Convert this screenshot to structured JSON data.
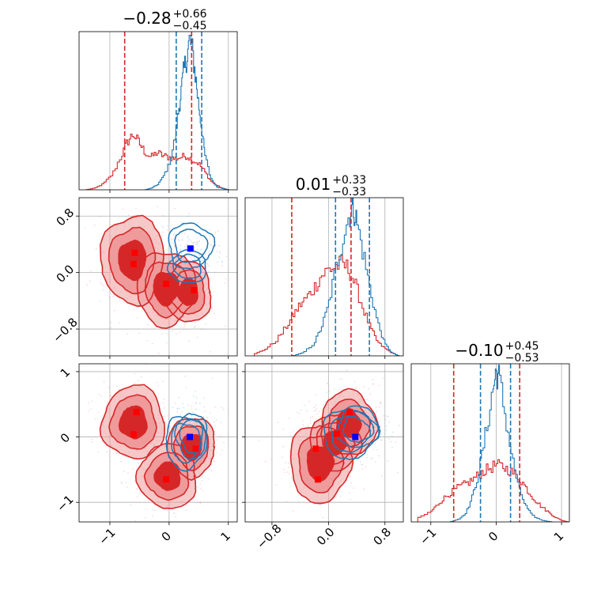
{
  "chart_data": {
    "type": "corner",
    "titles": [
      {
        "main": "−0.28",
        "sup": "+0.66",
        "sub": "−0.45"
      },
      {
        "main": "0.01",
        "sup": "+0.33",
        "sub": "−0.33"
      },
      {
        "main": "−0.10",
        "sup": "+0.45",
        "sub": "−0.53"
      }
    ],
    "axes": [
      {
        "range": [
          -1.52,
          1.15
        ],
        "ticks": [
          -1,
          0,
          1
        ],
        "tick_labels": [
          "−1",
          "0",
          "1"
        ]
      },
      {
        "range": [
          -1.18,
          1.06
        ],
        "ticks": [
          -0.8,
          0.0,
          0.8
        ],
        "tick_labels": [
          "−0.8",
          "0.0",
          "0.8"
        ]
      },
      {
        "range": [
          -1.3,
          1.12
        ],
        "ticks": [
          -1,
          0,
          1
        ],
        "tick_labels": [
          "−1",
          "0",
          "1"
        ]
      }
    ],
    "grid": true,
    "colors": {
      "red": "#d62728",
      "blue": "#1f77b4",
      "red_fill_light": "#ef9a9b",
      "red_fill_dark": "#d62728",
      "marker_red": "#ff0000",
      "marker_blue": "#0000ff"
    },
    "diagonal": [
      {
        "quantiles_red": [
          -0.75,
          0.38
        ],
        "quantiles_blue": [
          0.12,
          0.55
        ],
        "red_hist": {
          "x": [
            -1.4,
            -1.25,
            -1.1,
            -0.95,
            -0.8,
            -0.7,
            -0.6,
            -0.5,
            -0.4,
            -0.3,
            -0.2,
            -0.1,
            0.0,
            0.1,
            0.2,
            0.3,
            0.4,
            0.5,
            0.6,
            0.7,
            0.8,
            0.9,
            1.0
          ],
          "y": [
            0.0,
            0.01,
            0.04,
            0.1,
            0.22,
            0.31,
            0.36,
            0.3,
            0.24,
            0.21,
            0.24,
            0.22,
            0.21,
            0.2,
            0.21,
            0.22,
            0.19,
            0.17,
            0.12,
            0.06,
            0.03,
            0.01,
            0.0
          ]
        },
        "blue_hist": {
          "x": [
            -0.4,
            -0.3,
            -0.2,
            -0.1,
            0.0,
            0.1,
            0.15,
            0.2,
            0.25,
            0.3,
            0.35,
            0.4,
            0.45,
            0.5,
            0.55,
            0.6,
            0.7,
            0.8,
            0.9,
            1.0
          ],
          "y": [
            0.0,
            0.01,
            0.03,
            0.08,
            0.16,
            0.32,
            0.48,
            0.62,
            0.76,
            0.86,
            0.97,
            0.88,
            0.72,
            0.55,
            0.4,
            0.24,
            0.08,
            0.02,
            0.01,
            0.0
          ]
        }
      },
      {
        "quantiles_red": [
          -0.52,
          0.32
        ],
        "quantiles_blue": [
          0.1,
          0.58
        ],
        "red_hist": {
          "x": [
            -1.05,
            -0.9,
            -0.75,
            -0.6,
            -0.5,
            -0.4,
            -0.3,
            -0.2,
            -0.1,
            0.0,
            0.1,
            0.2,
            0.3,
            0.4,
            0.5,
            0.6,
            0.7,
            0.8,
            0.9,
            1.0
          ],
          "y": [
            0.01,
            0.04,
            0.09,
            0.18,
            0.26,
            0.33,
            0.38,
            0.44,
            0.52,
            0.56,
            0.58,
            0.6,
            0.56,
            0.44,
            0.3,
            0.18,
            0.09,
            0.05,
            0.02,
            0.0
          ]
        },
        "blue_hist": {
          "x": [
            -0.5,
            -0.35,
            -0.2,
            -0.1,
            0.0,
            0.1,
            0.2,
            0.3,
            0.35,
            0.4,
            0.5,
            0.6,
            0.7,
            0.8,
            0.9,
            1.0
          ],
          "y": [
            0.0,
            0.02,
            0.08,
            0.18,
            0.32,
            0.55,
            0.75,
            0.92,
            0.98,
            0.88,
            0.66,
            0.42,
            0.22,
            0.08,
            0.02,
            0.0
          ]
        }
      },
      {
        "quantiles_red": [
          -0.65,
          0.36
        ],
        "quantiles_blue": [
          -0.24,
          0.22
        ],
        "red_hist": {
          "x": [
            -1.2,
            -1.0,
            -0.9,
            -0.8,
            -0.7,
            -0.6,
            -0.5,
            -0.4,
            -0.3,
            -0.2,
            -0.1,
            0.0,
            0.1,
            0.2,
            0.3,
            0.4,
            0.5,
            0.6,
            0.7,
            0.8,
            0.9,
            1.0,
            1.1
          ],
          "y": [
            0.02,
            0.06,
            0.1,
            0.14,
            0.17,
            0.2,
            0.22,
            0.24,
            0.27,
            0.3,
            0.32,
            0.34,
            0.33,
            0.31,
            0.28,
            0.24,
            0.18,
            0.13,
            0.09,
            0.06,
            0.03,
            0.01,
            0.0
          ]
        },
        "blue_hist": {
          "x": [
            -0.7,
            -0.55,
            -0.45,
            -0.35,
            -0.25,
            -0.15,
            -0.05,
            0.0,
            0.05,
            0.15,
            0.25,
            0.35,
            0.45,
            0.55,
            0.7,
            0.85
          ],
          "y": [
            0.0,
            0.02,
            0.06,
            0.16,
            0.32,
            0.54,
            0.78,
            0.9,
            0.86,
            0.62,
            0.38,
            0.2,
            0.1,
            0.04,
            0.01,
            0.0
          ]
        }
      }
    ],
    "panels": [
      {
        "row": 1,
        "col": 0,
        "red_blobs": [
          {
            "x": -0.62,
            "y": 0.18,
            "sx": 0.32,
            "sy": 0.38
          },
          {
            "x": -0.05,
            "y": -0.22,
            "sx": 0.3,
            "sy": 0.32
          },
          {
            "x": 0.32,
            "y": -0.28,
            "sx": 0.24,
            "sy": 0.26
          }
        ],
        "blue_blobs": [
          {
            "x": 0.36,
            "y": 0.38,
            "sx": 0.26,
            "sy": 0.22
          },
          {
            "x": 0.32,
            "y": 0.08,
            "sx": 0.22,
            "sy": 0.16
          }
        ],
        "red_markers": [
          [
            -0.58,
            0.28
          ],
          [
            -0.6,
            0.12
          ],
          [
            -0.05,
            -0.16
          ],
          [
            0.42,
            -0.25
          ]
        ],
        "blue_markers": [
          [
            0.36,
            0.34
          ]
        ]
      },
      {
        "row": 2,
        "col": 0,
        "red_blobs": [
          {
            "x": -0.6,
            "y": 0.22,
            "sx": 0.32,
            "sy": 0.34
          },
          {
            "x": -0.02,
            "y": -0.6,
            "sx": 0.3,
            "sy": 0.3
          },
          {
            "x": 0.38,
            "y": -0.15,
            "sx": 0.24,
            "sy": 0.28
          }
        ],
        "blue_blobs": [
          {
            "x": 0.28,
            "y": -0.08,
            "sx": 0.24,
            "sy": 0.28
          },
          {
            "x": 0.38,
            "y": 0.02,
            "sx": 0.18,
            "sy": 0.24
          }
        ],
        "red_markers": [
          [
            -0.55,
            0.38
          ],
          [
            -0.6,
            0.04
          ],
          [
            -0.05,
            -0.65
          ],
          [
            0.45,
            -0.18
          ]
        ],
        "blue_markers": [
          [
            0.35,
            0.0
          ]
        ]
      },
      {
        "row": 2,
        "col": 1,
        "red_blobs": [
          {
            "x": -0.12,
            "y": -0.4,
            "sx": 0.26,
            "sy": 0.36
          },
          {
            "x": 0.28,
            "y": 0.2,
            "sx": 0.24,
            "sy": 0.3
          },
          {
            "x": 0.08,
            "y": -0.1,
            "sx": 0.22,
            "sy": 0.26
          }
        ],
        "blue_blobs": [
          {
            "x": 0.3,
            "y": 0.05,
            "sx": 0.26,
            "sy": 0.26
          },
          {
            "x": 0.42,
            "y": 0.15,
            "sx": 0.2,
            "sy": 0.22
          }
        ],
        "red_markers": [
          [
            -0.18,
            -0.18
          ],
          [
            -0.15,
            -0.65
          ],
          [
            0.3,
            0.38
          ],
          [
            0.12,
            0.05
          ]
        ],
        "blue_markers": [
          [
            0.38,
            0.0
          ]
        ]
      }
    ]
  }
}
